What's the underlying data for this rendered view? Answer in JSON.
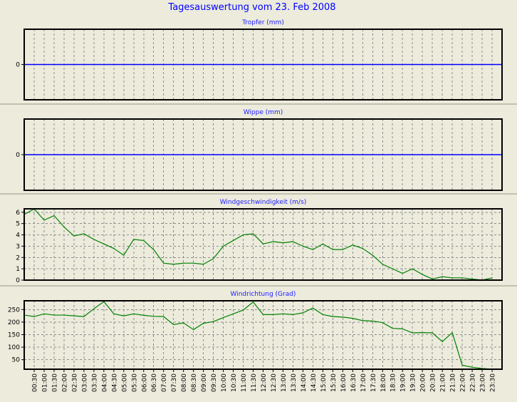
{
  "window": {
    "title": "Tagesauswertung vom 23. Feb 2008"
  },
  "colors": {
    "background": "#ecebdc",
    "plot_background": "#ecebdc",
    "title": "#0000ff",
    "panel_title": "#1a1aff",
    "separator": "#c2c2b0",
    "grid": "#8c8c8c",
    "zero_line": "#0000ff",
    "series_line": "#008000"
  },
  "x_ticks": [
    "00:30",
    "01:00",
    "01:30",
    "02:00",
    "02:30",
    "03:00",
    "03:30",
    "04:00",
    "04:30",
    "05:00",
    "05:30",
    "06:00",
    "06:30",
    "07:00",
    "07:30",
    "08:00",
    "08:30",
    "09:00",
    "09:30",
    "10:00",
    "10:30",
    "11:00",
    "11:30",
    "12:00",
    "12:30",
    "13:00",
    "13:30",
    "14:00",
    "14:30",
    "15:00",
    "15:30",
    "16:00",
    "16:30",
    "17:00",
    "17:30",
    "18:00",
    "18:30",
    "19:00",
    "19:30",
    "20:00",
    "20:30",
    "21:00",
    "21:30",
    "22:00",
    "22:30",
    "23:00",
    "23:30"
  ],
  "chart_data": [
    {
      "type": "line",
      "title": "Tropfer (mm)",
      "ylim": [
        -1,
        1
      ],
      "yticks": [
        0
      ],
      "grid": true,
      "series": [
        {
          "values": [
            0,
            0
          ]
        }
      ]
    },
    {
      "type": "line",
      "title": "Wippe (mm)",
      "ylim": [
        -1,
        1
      ],
      "yticks": [
        0
      ],
      "grid": true,
      "series": [
        {
          "values": [
            0,
            0
          ]
        }
      ]
    },
    {
      "type": "line",
      "title": "Windgeschwindigkeit (m/s)",
      "ylim": [
        0,
        6.3
      ],
      "yticks": [
        0,
        1,
        2,
        3,
        4,
        5,
        6
      ],
      "grid": true,
      "series": [
        {
          "values": [
            5.8,
            6.3,
            5.3,
            5.7,
            4.7,
            3.9,
            4.1,
            3.6,
            3.2,
            2.8,
            2.2,
            3.6,
            3.5,
            2.7,
            1.5,
            1.4,
            1.5,
            1.5,
            1.4,
            1.9,
            3.0,
            3.5,
            4.0,
            4.1,
            3.2,
            3.4,
            3.3,
            3.4,
            3.0,
            2.7,
            3.2,
            2.7,
            2.7,
            3.1,
            2.8,
            2.2,
            1.4,
            1.0,
            0.6,
            1.0,
            0.5,
            0.1,
            0.3,
            0.2,
            0.2,
            0.1,
            0.0,
            0.2
          ]
        }
      ]
    },
    {
      "type": "line",
      "title": "Windrichtung (Grad)",
      "ylim": [
        12,
        285
      ],
      "yticks": [
        50,
        100,
        150,
        200,
        250
      ],
      "grid": true,
      "series": [
        {
          "values": [
            228,
            222,
            233,
            228,
            228,
            225,
            222,
            253,
            282,
            233,
            225,
            233,
            227,
            223,
            222,
            190,
            197,
            170,
            195,
            202,
            218,
            233,
            248,
            280,
            230,
            230,
            233,
            230,
            237,
            256,
            230,
            222,
            220,
            215,
            206,
            204,
            198,
            175,
            173,
            157,
            158,
            157,
            122,
            158,
            28,
            20,
            15,
            12
          ]
        }
      ]
    }
  ]
}
